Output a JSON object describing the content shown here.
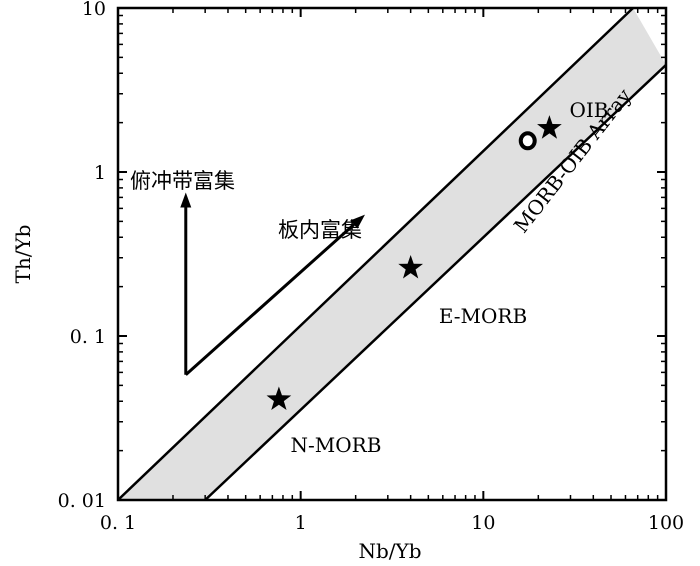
{
  "chart_data": {
    "type": "scatter",
    "xlabel": "Nb/Yb",
    "ylabel": "Th/Yb",
    "xscale": "log",
    "yscale": "log",
    "xlim": [
      0.1,
      100
    ],
    "ylim": [
      0.01,
      10
    ],
    "x_ticks": [
      {
        "value": 0.1,
        "label": "0. 1"
      },
      {
        "value": 1,
        "label": "1"
      },
      {
        "value": 10,
        "label": "10"
      },
      {
        "value": 100,
        "label": "100"
      }
    ],
    "y_ticks": [
      {
        "value": 0.01,
        "label": "0. 01"
      },
      {
        "value": 0.1,
        "label": "0. 1"
      },
      {
        "value": 1,
        "label": "1"
      },
      {
        "value": 10,
        "label": "10"
      }
    ],
    "array_band": {
      "label": "MORB-OIB Array",
      "upper_line": [
        [
          0.1,
          0.01
        ],
        [
          66,
          10
        ]
      ],
      "lower_line": [
        [
          0.3,
          0.01
        ],
        [
          100,
          4.5
        ]
      ],
      "fill": "#e0e0e0"
    },
    "reference_points": [
      {
        "label": "N-MORB",
        "x": 0.76,
        "y": 0.041,
        "marker": "star"
      },
      {
        "label": "E-MORB",
        "x": 4.0,
        "y": 0.26,
        "marker": "star"
      },
      {
        "label": "OIB",
        "x": 23,
        "y": 1.85,
        "marker": "star"
      }
    ],
    "samples": [
      {
        "x": 17.5,
        "y": 1.55,
        "marker": "open-circle"
      }
    ],
    "arrows": [
      {
        "label": "俯冲带富集",
        "from": [
          0.235,
          0.058
        ],
        "to": [
          0.235,
          0.75
        ]
      },
      {
        "label": "板内富集",
        "from": [
          0.235,
          0.058
        ],
        "to": [
          2.25,
          0.55
        ]
      }
    ]
  }
}
